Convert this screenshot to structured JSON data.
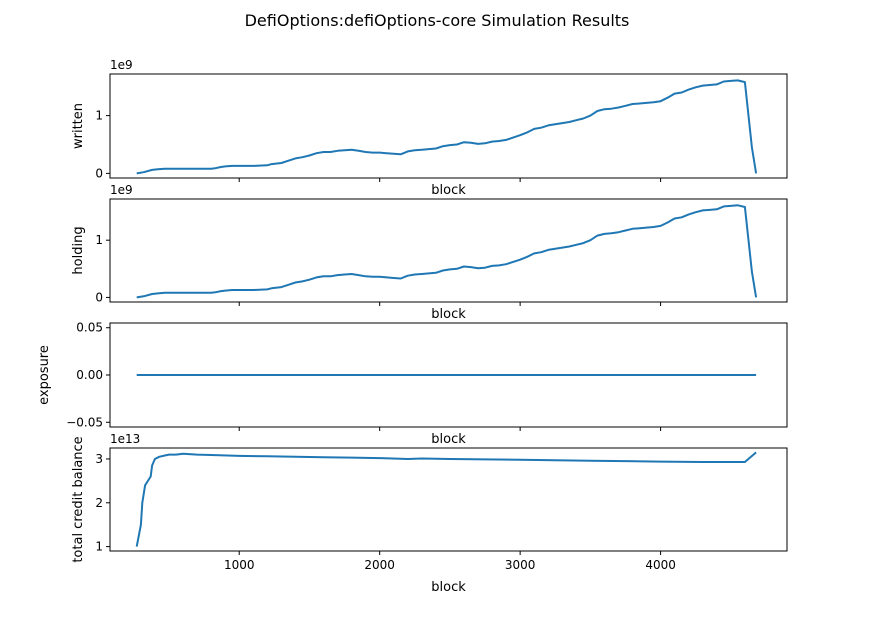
{
  "figure": {
    "title": "DefiOptions:defiOptions-core Simulation Results"
  },
  "chart_data": [
    {
      "type": "line",
      "title": "",
      "xlabel": "block",
      "ylabel": "written",
      "offset_text": "1e9",
      "xlim": [
        80,
        4900
      ],
      "ylim": [
        -0.08,
        1.72
      ],
      "xticks": [
        1000,
        2000,
        3000,
        4000
      ],
      "xtick_labels_visible": false,
      "yticks": [
        0,
        1
      ],
      "ytick_labels": [
        "0",
        "1"
      ],
      "series": [
        {
          "color": "#1f77b4",
          "x": [
            270,
            320,
            380,
            420,
            470,
            600,
            700,
            800,
            830,
            870,
            900,
            950,
            1000,
            1100,
            1200,
            1230,
            1300,
            1350,
            1400,
            1450,
            1500,
            1550,
            1600,
            1650,
            1700,
            1750,
            1800,
            1850,
            1900,
            1950,
            2000,
            2050,
            2100,
            2150,
            2200,
            2250,
            2300,
            2350,
            2400,
            2450,
            2500,
            2550,
            2600,
            2650,
            2700,
            2750,
            2800,
            2850,
            2900,
            2950,
            3000,
            3050,
            3100,
            3150,
            3200,
            3250,
            3300,
            3350,
            3400,
            3450,
            3500,
            3550,
            3600,
            3650,
            3700,
            3750,
            3800,
            3850,
            3900,
            3950,
            4000,
            4050,
            4100,
            4150,
            4200,
            4250,
            4300,
            4350,
            4400,
            4450,
            4500,
            4550,
            4600,
            4650,
            4680
          ],
          "y": [
            0.0,
            0.02,
            0.06,
            0.07,
            0.08,
            0.08,
            0.08,
            0.08,
            0.09,
            0.11,
            0.12,
            0.13,
            0.13,
            0.13,
            0.14,
            0.16,
            0.18,
            0.22,
            0.26,
            0.28,
            0.31,
            0.35,
            0.37,
            0.37,
            0.39,
            0.4,
            0.41,
            0.39,
            0.37,
            0.36,
            0.36,
            0.35,
            0.34,
            0.33,
            0.38,
            0.4,
            0.41,
            0.42,
            0.43,
            0.47,
            0.49,
            0.5,
            0.54,
            0.53,
            0.51,
            0.52,
            0.55,
            0.56,
            0.58,
            0.62,
            0.66,
            0.71,
            0.77,
            0.79,
            0.83,
            0.85,
            0.87,
            0.89,
            0.92,
            0.95,
            1.0,
            1.08,
            1.11,
            1.12,
            1.14,
            1.17,
            1.2,
            1.21,
            1.22,
            1.23,
            1.25,
            1.31,
            1.38,
            1.4,
            1.45,
            1.49,
            1.52,
            1.53,
            1.54,
            1.59,
            1.6,
            1.61,
            1.58,
            0.45,
            0.0
          ]
        }
      ]
    },
    {
      "type": "line",
      "title": "",
      "xlabel": "block",
      "ylabel": "holding",
      "offset_text": "1e9",
      "xlim": [
        80,
        4900
      ],
      "ylim": [
        -0.08,
        1.72
      ],
      "xticks": [
        1000,
        2000,
        3000,
        4000
      ],
      "xtick_labels_visible": false,
      "yticks": [
        0,
        1
      ],
      "ytick_labels": [
        "0",
        "1"
      ],
      "series": [
        {
          "color": "#1f77b4",
          "x": [
            270,
            320,
            380,
            420,
            470,
            600,
            700,
            800,
            830,
            870,
            900,
            950,
            1000,
            1100,
            1200,
            1230,
            1300,
            1350,
            1400,
            1450,
            1500,
            1550,
            1600,
            1650,
            1700,
            1750,
            1800,
            1850,
            1900,
            1950,
            2000,
            2050,
            2100,
            2150,
            2200,
            2250,
            2300,
            2350,
            2400,
            2450,
            2500,
            2550,
            2600,
            2650,
            2700,
            2750,
            2800,
            2850,
            2900,
            2950,
            3000,
            3050,
            3100,
            3150,
            3200,
            3250,
            3300,
            3350,
            3400,
            3450,
            3500,
            3550,
            3600,
            3650,
            3700,
            3750,
            3800,
            3850,
            3900,
            3950,
            4000,
            4050,
            4100,
            4150,
            4200,
            4250,
            4300,
            4350,
            4400,
            4450,
            4500,
            4550,
            4600,
            4650,
            4680
          ],
          "y": [
            0.0,
            0.02,
            0.06,
            0.07,
            0.08,
            0.08,
            0.08,
            0.08,
            0.09,
            0.11,
            0.12,
            0.13,
            0.13,
            0.13,
            0.14,
            0.16,
            0.18,
            0.22,
            0.26,
            0.28,
            0.31,
            0.35,
            0.37,
            0.37,
            0.39,
            0.4,
            0.41,
            0.39,
            0.37,
            0.36,
            0.36,
            0.35,
            0.34,
            0.33,
            0.38,
            0.4,
            0.41,
            0.42,
            0.43,
            0.47,
            0.49,
            0.5,
            0.54,
            0.53,
            0.51,
            0.52,
            0.55,
            0.56,
            0.58,
            0.62,
            0.66,
            0.71,
            0.77,
            0.79,
            0.83,
            0.85,
            0.87,
            0.89,
            0.92,
            0.95,
            1.0,
            1.08,
            1.11,
            1.12,
            1.14,
            1.17,
            1.2,
            1.21,
            1.22,
            1.23,
            1.25,
            1.31,
            1.38,
            1.4,
            1.45,
            1.49,
            1.52,
            1.53,
            1.54,
            1.59,
            1.6,
            1.61,
            1.58,
            0.45,
            0.0
          ]
        }
      ]
    },
    {
      "type": "line",
      "title": "",
      "xlabel": "block",
      "ylabel": "exposure",
      "offset_text": "",
      "xlim": [
        80,
        4900
      ],
      "ylim": [
        -0.055,
        0.055
      ],
      "xticks": [
        1000,
        2000,
        3000,
        4000
      ],
      "xtick_labels_visible": false,
      "yticks": [
        -0.05,
        0.0,
        0.05
      ],
      "ytick_labels": [
        "−0.05",
        "0.00",
        "0.05"
      ],
      "series": [
        {
          "color": "#1f77b4",
          "x": [
            270,
            4680
          ],
          "y": [
            0.0,
            0.0
          ]
        }
      ]
    },
    {
      "type": "line",
      "title": "",
      "xlabel": "block",
      "ylabel": "total credit balance",
      "offset_text": "1e13",
      "xlim": [
        80,
        4900
      ],
      "ylim": [
        0.9,
        3.25
      ],
      "xticks": [
        1000,
        2000,
        3000,
        4000
      ],
      "xtick_labels_visible": true,
      "xtick_labels": [
        "1000",
        "2000",
        "3000",
        "4000"
      ],
      "yticks": [
        1,
        2,
        3
      ],
      "ytick_labels": [
        "1",
        "2",
        "3"
      ],
      "series": [
        {
          "color": "#1f77b4",
          "x": [
            270,
            300,
            310,
            330,
            350,
            370,
            380,
            400,
            430,
            470,
            500,
            550,
            600,
            700,
            800,
            1000,
            1200,
            1400,
            1600,
            1800,
            2000,
            2200,
            2300,
            2500,
            3000,
            3500,
            4000,
            4300,
            4600,
            4680
          ],
          "y": [
            1.0,
            1.5,
            2.0,
            2.4,
            2.5,
            2.6,
            2.85,
            3.0,
            3.05,
            3.08,
            3.1,
            3.1,
            3.12,
            3.1,
            3.09,
            3.07,
            3.06,
            3.05,
            3.04,
            3.03,
            3.02,
            3.0,
            3.01,
            3.0,
            2.98,
            2.96,
            2.94,
            2.93,
            2.93,
            3.15
          ]
        }
      ]
    }
  ]
}
